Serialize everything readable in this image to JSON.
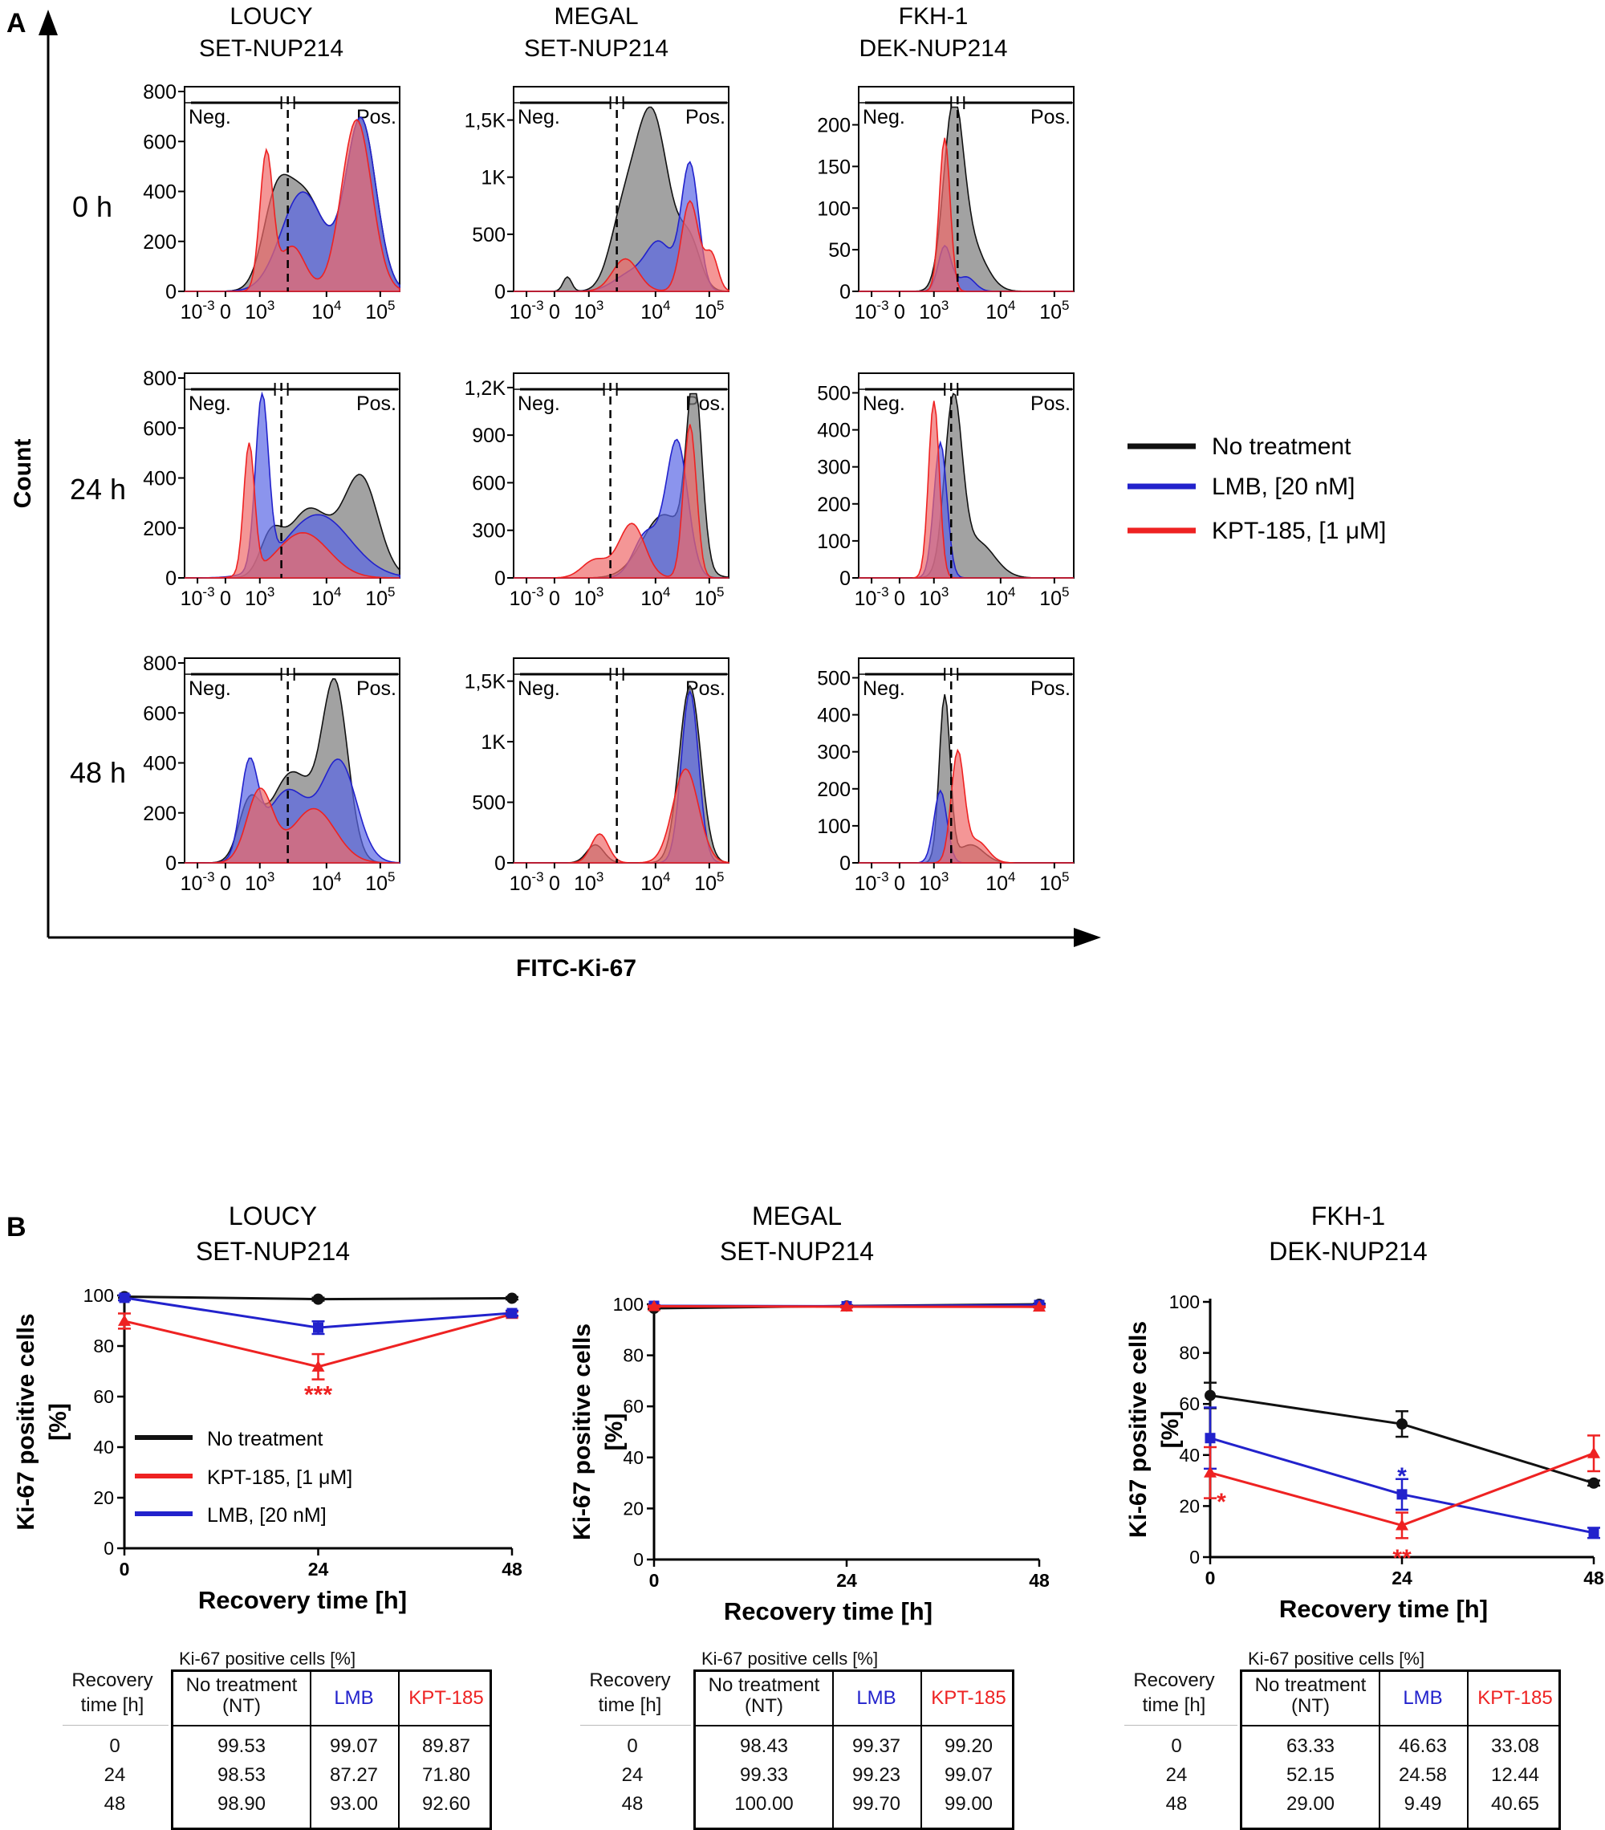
{
  "colors": {
    "no_treatment": "#111111",
    "lmb": "#2222cc",
    "kpt185": "#ee2222",
    "fill_nt": "#7a7a7a",
    "fill_lmb": "#5a66e6",
    "fill_kpt": "#f06a6a"
  },
  "panel_a": {
    "label": "A",
    "y_axis_label": "Count",
    "x_axis_label": "FITC-Ki-67",
    "columns": [
      {
        "line1": "LOUCY",
        "line2": "SET-NUP214"
      },
      {
        "line1": "MEGAL",
        "line2": "SET-NUP214"
      },
      {
        "line1": "FKH-1",
        "line2": "DEK-NUP214"
      }
    ],
    "rows": [
      "0 h",
      "24 h",
      "48 h"
    ],
    "gate_neg": "Neg.",
    "gate_pos": "Pos.",
    "x_ticks": [
      "10-3",
      "0",
      "103",
      "104",
      "105"
    ],
    "legend": [
      {
        "label": "No treatment",
        "color": "#111111"
      },
      {
        "label": "LMB, [20 nM]",
        "color": "#2222cc"
      },
      {
        "label": "KPT-185, [1 μM]",
        "color": "#ee2222"
      }
    ]
  },
  "chart_data": [
    {
      "type": "line",
      "panel": "B",
      "cell_line": "LOUCY",
      "fusion": "SET-NUP214",
      "x": [
        0,
        24,
        48
      ],
      "xlabel": "Recovery time [h]",
      "ylabel": "Ki-67 positive cells [%]",
      "ylim": [
        0,
        100
      ],
      "y_ticks": [
        0,
        20,
        40,
        60,
        80,
        100
      ],
      "series": [
        {
          "name": "No treatment",
          "color": "#111111",
          "marker": "circle",
          "values": [
            99.53,
            98.53,
            98.9
          ],
          "errors": [
            0.5,
            0.6,
            0.5
          ]
        },
        {
          "name": "KPT-185, [1 μM]",
          "color": "#ee2222",
          "marker": "triangle",
          "values": [
            89.87,
            71.8,
            92.6
          ],
          "errors": [
            3,
            5,
            1
          ]
        },
        {
          "name": "LMB, [20 nM]",
          "color": "#2222cc",
          "marker": "square",
          "values": [
            99.07,
            87.27,
            93.0
          ],
          "errors": [
            1,
            2.5,
            1
          ]
        }
      ],
      "annotations": [
        {
          "text": "***",
          "x": 24,
          "color": "#ee2222"
        }
      ],
      "legend_placement": "inside-left",
      "table": {
        "caption": "Ki-67 positive cells [%]",
        "row_header": [
          "Recovery",
          "time [h]"
        ],
        "headers": [
          {
            "line1": "No treatment",
            "line2": "(NT)"
          },
          {
            "line1": "LMB",
            "line2": ""
          },
          {
            "line1": "KPT-185",
            "line2": ""
          }
        ],
        "rows": [
          [
            "0",
            "99.53",
            "99.07",
            "89.87"
          ],
          [
            "24",
            "98.53",
            "87.27",
            "71.80"
          ],
          [
            "48",
            "98.90",
            "93.00",
            "92.60"
          ]
        ]
      }
    },
    {
      "type": "line",
      "panel": "B",
      "cell_line": "MEGAL",
      "fusion": "SET-NUP214",
      "x": [
        0,
        24,
        48
      ],
      "xlabel": "Recovery time [h]",
      "ylabel": "Ki-67 positive cells [%]",
      "ylim": [
        0,
        100
      ],
      "y_ticks": [
        0,
        20,
        40,
        60,
        80,
        100
      ],
      "series": [
        {
          "name": "No treatment",
          "color": "#111111",
          "marker": "circle",
          "values": [
            98.43,
            99.33,
            100.0
          ],
          "errors": [
            0.3,
            0.3,
            0.2
          ]
        },
        {
          "name": "LMB, [20 nM]",
          "color": "#2222cc",
          "marker": "square",
          "values": [
            99.37,
            99.23,
            99.7
          ],
          "errors": [
            0.3,
            0.3,
            0.2
          ]
        },
        {
          "name": "KPT-185, [1 μM]",
          "color": "#ee2222",
          "marker": "triangle",
          "values": [
            99.2,
            99.07,
            99.0
          ],
          "errors": [
            0.3,
            0.3,
            0.2
          ]
        }
      ],
      "annotations": [],
      "table": {
        "caption": "Ki-67 positive cells [%]",
        "row_header": [
          "Recovery",
          "time [h]"
        ],
        "headers": [
          {
            "line1": "No treatment",
            "line2": "(NT)"
          },
          {
            "line1": "LMB",
            "line2": ""
          },
          {
            "line1": "KPT-185",
            "line2": ""
          }
        ],
        "rows": [
          [
            "0",
            "98.43",
            "99.37",
            "99.20"
          ],
          [
            "24",
            "99.33",
            "99.23",
            "99.07"
          ],
          [
            "48",
            "100.00",
            "99.70",
            "99.00"
          ]
        ]
      }
    },
    {
      "type": "line",
      "panel": "B",
      "cell_line": "FKH-1",
      "fusion": "DEK-NUP214",
      "x": [
        0,
        24,
        48
      ],
      "xlabel": "Recovery time [h]",
      "ylabel": "Ki-67 positive cells [%]",
      "ylim": [
        0,
        100
      ],
      "y_ticks": [
        0,
        20,
        40,
        60,
        80,
        100
      ],
      "series": [
        {
          "name": "No treatment",
          "color": "#111111",
          "marker": "circle",
          "values": [
            63.33,
            52.15,
            29.0
          ],
          "errors": [
            5,
            5,
            1
          ]
        },
        {
          "name": "LMB, [20 nM]",
          "color": "#2222cc",
          "marker": "square",
          "values": [
            46.63,
            24.58,
            9.49
          ],
          "errors": [
            12,
            6,
            2
          ]
        },
        {
          "name": "KPT-185, [1 μM]",
          "color": "#ee2222",
          "marker": "triangle",
          "values": [
            33.08,
            12.44,
            40.65
          ],
          "errors": [
            10,
            5,
            7
          ]
        }
      ],
      "annotations": [
        {
          "text": "*",
          "x": 0,
          "color": "#ee2222"
        },
        {
          "text": "*",
          "x": 24,
          "color": "#2222cc"
        },
        {
          "text": "**",
          "x": 24,
          "color": "#ee2222"
        }
      ],
      "table": {
        "caption": "Ki-67 positive cells [%]",
        "row_header": [
          "Recovery",
          "time [h]"
        ],
        "headers": [
          {
            "line1": "No treatment",
            "line2": "(NT)"
          },
          {
            "line1": "LMB",
            "line2": ""
          },
          {
            "line1": "KPT-185",
            "line2": ""
          }
        ],
        "rows": [
          [
            "0",
            "63.33",
            "46.63",
            "33.08"
          ],
          [
            "24",
            "52.15",
            "24.58",
            "12.44"
          ],
          [
            "48",
            "29.00",
            "9.49",
            "40.65"
          ]
        ]
      }
    }
  ],
  "panel_b": {
    "label": "B"
  },
  "histograms": [
    {
      "ticks": [
        "0",
        "200",
        "400",
        "600",
        "800"
      ],
      "ymax": 800
    },
    {
      "ticks": [
        "0",
        "500",
        "1K",
        "1,5K"
      ],
      "ymax": 1750
    },
    {
      "ticks": [
        "0",
        "50",
        "100",
        "150",
        "200"
      ],
      "ymax": 240
    },
    {
      "ticks": [
        "0",
        "200",
        "400",
        "600",
        "800"
      ],
      "ymax": 800
    },
    {
      "ticks": [
        "0",
        "300",
        "600",
        "900",
        "1,2K"
      ],
      "ymax": 1260
    },
    {
      "ticks": [
        "0",
        "100",
        "200",
        "300",
        "400",
        "500"
      ],
      "ymax": 540
    },
    {
      "ticks": [
        "0",
        "200",
        "400",
        "600",
        "800"
      ],
      "ymax": 800
    },
    {
      "ticks": [
        "0",
        "500",
        "1K",
        "1,5K"
      ],
      "ymax": 1650
    },
    {
      "ticks": [
        "0",
        "100",
        "200",
        "300",
        "400",
        "500"
      ],
      "ymax": 540
    }
  ]
}
